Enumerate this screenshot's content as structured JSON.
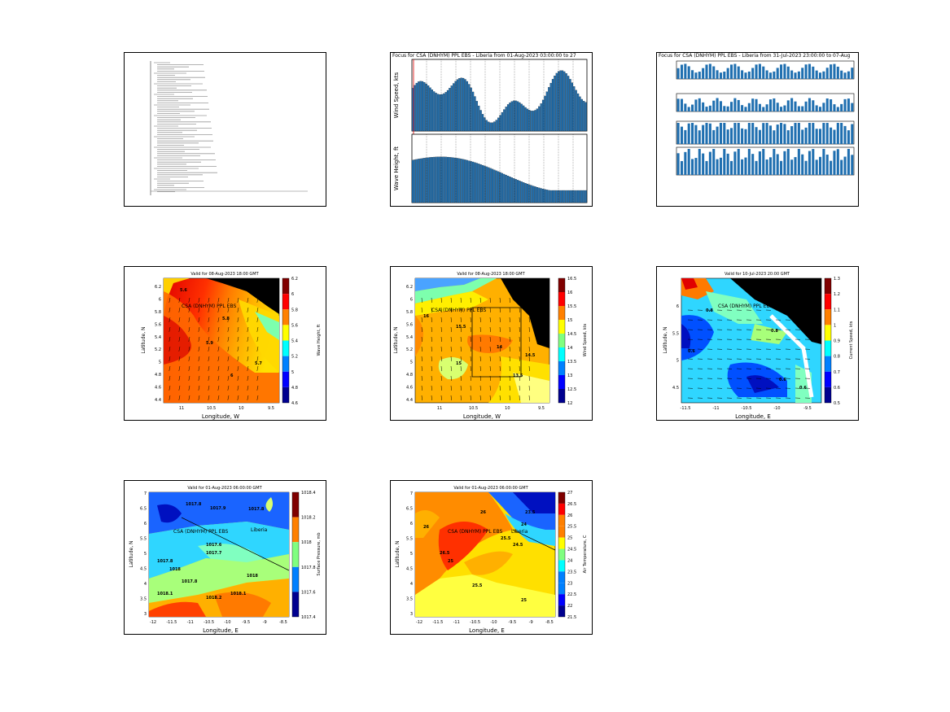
{
  "page": {
    "panels": [
      {
        "id": "summary"
      },
      {
        "id": "wind-wave-bars"
      },
      {
        "id": "met-bars"
      },
      {
        "id": "wave-height-map"
      },
      {
        "id": "wind-speed-map"
      },
      {
        "id": "current-speed-map"
      },
      {
        "id": "pressure-map"
      },
      {
        "id": "air-temp-map"
      }
    ]
  },
  "summary_panel": {
    "line_count": 0
  },
  "wind_wave_panel": {
    "title": "Focus for CSA (DNHYM) PPL EBS - Liberia from 01-Aug-2023 03:00:00 to 27",
    "ylabel_top": "Wind Speed, kts",
    "ylabel_bottom": "Wave Height, ft"
  },
  "met_panel": {
    "title": "Focus for CSA (DNHYM) PPL EBS - Liberia from 31-Jul-2023 23:00:00 to 07-Aug"
  },
  "wave_map": {
    "title": "Valid for 08-Aug-2023 18:00 GMT",
    "xlabel": "Longitude, W",
    "ylabel": "Latitude, N",
    "cbar_label": "Wave Height, ft",
    "cbar_ticks": [
      "6.2",
      "6",
      "5.8",
      "5.6",
      "5.4",
      "5.2",
      "5",
      "4.8",
      "4.6"
    ],
    "xticks": [
      "11",
      "10.5",
      "10",
      "9.5"
    ],
    "yticks": [
      "6.2",
      "6",
      "5.8",
      "5.6",
      "5.4",
      "5.2",
      "5",
      "4.8",
      "4.6",
      "4.4"
    ],
    "station": "CSA (DNHYM) PPL EBS",
    "contour_labels": [
      "5.6",
      "5.8",
      "5.9",
      "6",
      "5.7"
    ]
  },
  "wind_map": {
    "title": "Valid for 08-Aug-2023 18:00 GMT",
    "xlabel": "Longitude, W",
    "ylabel": "Latitude, N",
    "cbar_label": "Wind Speed, kts",
    "cbar_ticks": [
      "16.5",
      "16",
      "15.5",
      "15",
      "14.5",
      "14",
      "13.5",
      "13",
      "12.5",
      "12"
    ],
    "xticks": [
      "11",
      "10.5",
      "10",
      "9.5"
    ],
    "yticks": [
      "6.2",
      "6",
      "5.8",
      "5.6",
      "5.4",
      "5.2",
      "5",
      "4.8",
      "4.6",
      "4.4"
    ],
    "station": "CSA (DNHYM) PPL EBS",
    "contour_labels": [
      "16",
      "15.5",
      "14",
      "15",
      "13.5",
      "14.5"
    ]
  },
  "current_map": {
    "title": "Valid for 10-Jul-2023 20:00 GMT",
    "xlabel": "Longitude, E",
    "ylabel": "Latitude, N",
    "cbar_label": "Current Speed, kts",
    "cbar_ticks": [
      "1.3",
      "1.2",
      "1.1",
      "1",
      "0.9",
      "0.8",
      "0.7",
      "0.6",
      "0.5"
    ],
    "xticks": [
      "-11.5",
      "-11",
      "-10.5",
      "-10",
      "-9.5"
    ],
    "yticks": [
      "6",
      "5.5",
      "5",
      "4.5"
    ],
    "station": "CSA (DNHYM) PPL EBS",
    "contour_labels": [
      "0.8",
      "0.8",
      "0.6",
      "0.6",
      "0.6"
    ]
  },
  "pressure_map": {
    "title": "Valid for 01-Aug-2023 06:00:00 GMT",
    "xlabel": "Longitude, E",
    "ylabel": "Latitude, N",
    "cbar_label": "Surface Pressure, mb",
    "cbar_ticks": [
      "1018.4",
      "1018.2",
      "1018",
      "1017.8",
      "1017.6",
      "1017.4"
    ],
    "xticks": [
      "-12",
      "-11.5",
      "-11",
      "-10.5",
      "-10",
      "-9.5",
      "-9",
      "-8.5"
    ],
    "yticks": [
      "7",
      "6.5",
      "6",
      "5.5",
      "5",
      "4.5",
      "4",
      "3.5",
      "3"
    ],
    "station": "CSA (DNHYM) PPL EBS",
    "place": "Liberia",
    "contour_labels": [
      "1017.8",
      "1017.9",
      "1017.8",
      "1017.6",
      "1017.7",
      "1017.8",
      "1018",
      "1017.8",
      "1018.1",
      "1018.2",
      "1018.1",
      "1018"
    ]
  },
  "temp_map": {
    "title": "Valid for 01-Aug-2023 06:00:00 GMT",
    "xlabel": "Longitude, E",
    "ylabel": "Latitude, N",
    "cbar_label": "Air Temperature, C",
    "cbar_ticks": [
      "27",
      "26.5",
      "26",
      "25.5",
      "25",
      "24.5",
      "24",
      "23.5",
      "23",
      "22.5",
      "22",
      "21.5"
    ],
    "xticks": [
      "-12",
      "-11.5",
      "-11",
      "-10.5",
      "-10",
      "-9.5",
      "-9",
      "-8.5"
    ],
    "yticks": [
      "7",
      "6.5",
      "6",
      "5.5",
      "5",
      "4.5",
      "4",
      "3.5",
      "3"
    ],
    "station": "CSA (DNHYM) PPL EBS",
    "place": "Liberia",
    "contour_labels": [
      "26",
      "26.5",
      "24.5",
      "25.5",
      "25",
      "26",
      "25.5",
      "25",
      "24",
      "23.5"
    ]
  },
  "colors": {
    "jet": [
      "#00008f",
      "#0000ff",
      "#0080ff",
      "#00ffff",
      "#80ff80",
      "#ffff00",
      "#ff8000",
      "#ff0000",
      "#800000"
    ],
    "bar": "#1f6fb0",
    "land": "#000000"
  }
}
